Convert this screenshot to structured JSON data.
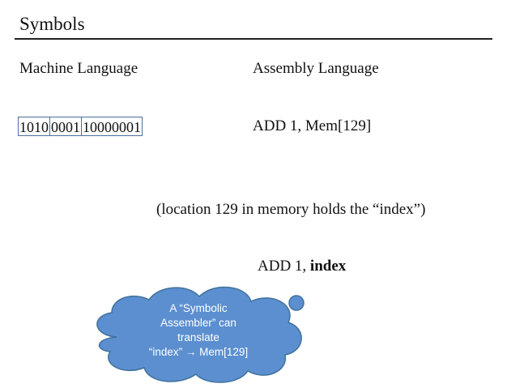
{
  "slide": {
    "title": "Symbols",
    "machine_header": "Machine Language",
    "assembly_header": "Assembly Language",
    "machine_code_segments": [
      "1010",
      "0001",
      "10000001"
    ],
    "assembly_instruction": "ADD 1, Mem[129]",
    "note": "(location 129 in memory holds the “index”)",
    "symbolic_prefix": "ADD 1, ",
    "symbolic_name": "index",
    "callout_lines": [
      "A “Symbolic",
      "Assembler” can",
      "translate",
      "“index” → Mem[129]"
    ],
    "callout_color": "#5b8fd0",
    "callout_border": "#41719c"
  }
}
